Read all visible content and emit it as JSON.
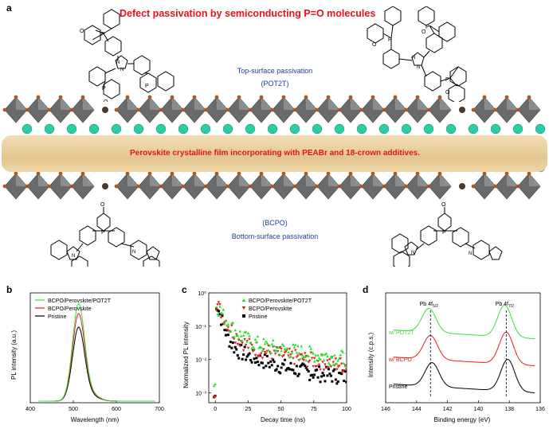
{
  "panel_a": {
    "letter": "a",
    "title": "Defect passivation by semiconducting P=O molecules",
    "top_label_1": "Top-surface passivation",
    "top_label_2": "(POT2T)",
    "film_text": "Perovskite crystalline film incorporating with PEABr and 18-crown additives.",
    "bottom_label_1": "(BCPO)",
    "bottom_label_2": "Bottom-surface passivation",
    "colors": {
      "title": "#e8101a",
      "labels": "#1d3e9e",
      "octahedra": "#6b6b6b",
      "cation": "#2fcaa6",
      "film": "#ead1a0"
    }
  },
  "chart_data": [
    {
      "panel": "b",
      "type": "line",
      "xlabel": "Wavelength (nm)",
      "ylabel": "PL intensity (a.u.)",
      "xlim": [
        400,
        700
      ],
      "x_ticks": [
        "400",
        "500",
        "600",
        "700"
      ],
      "series": [
        {
          "name": "BCPO/Perovskite/POT2T",
          "color": "#3ddc3d",
          "peak_x": 512,
          "peak_y": 1.0
        },
        {
          "name": "BCPO/Perovskite",
          "color": "#e0201f",
          "peak_x": 512,
          "peak_y": 0.9
        },
        {
          "name": "Pristine",
          "color": "#000000",
          "peak_x": 512,
          "peak_y": 0.76
        }
      ]
    },
    {
      "panel": "c",
      "type": "scatter",
      "xlabel": "Decay time (ns)",
      "ylabel": "Normalized PL intensity",
      "xlim": [
        -5,
        100
      ],
      "ylim_log": [
        0.0005,
        1
      ],
      "x_ticks": [
        "0",
        "25",
        "50",
        "75",
        "100"
      ],
      "y_ticks": [
        "10⁰",
        "10⁻¹",
        "10⁻²",
        "10⁻³"
      ],
      "series": [
        {
          "name": "BCPO/Perovskite/POT2T",
          "color": "#22e022",
          "marker": "triangle-up"
        },
        {
          "name": "BCPO/Perovskite",
          "color": "#e0201f",
          "marker": "triangle-down"
        },
        {
          "name": "Pristine",
          "color": "#000000",
          "marker": "square"
        }
      ]
    },
    {
      "panel": "d",
      "type": "line",
      "xlabel": "Binding energy (eV)",
      "ylabel": "Intensity (c.p.s.)",
      "xlim": [
        146,
        136
      ],
      "x_ticks": [
        "146",
        "144",
        "142",
        "140",
        "138",
        "136"
      ],
      "peak_labels": [
        "Pb 4f",
        "Pb 4f"
      ],
      "peak_label_subs": [
        "5/2",
        "7/2"
      ],
      "series": [
        {
          "name": "w/ POT2T",
          "color": "#3ddc3d",
          "peaks": [
            143.2,
            138.3
          ]
        },
        {
          "name": "w/ BCPO",
          "color": "#e0201f",
          "peaks": [
            143.1,
            138.2
          ]
        },
        {
          "name": "Pristine",
          "color": "#000000",
          "peaks": [
            143.0,
            138.1
          ]
        }
      ]
    }
  ],
  "panel_letters": {
    "b": "b",
    "c": "c",
    "d": "d"
  }
}
